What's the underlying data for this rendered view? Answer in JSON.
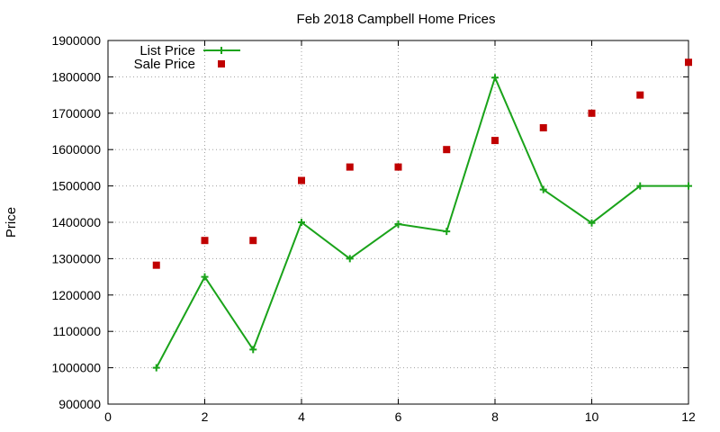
{
  "chart_data": {
    "type": "line",
    "title": "Feb 2018 Campbell Home Prices",
    "xlabel": "",
    "ylabel": "Price",
    "xlim": [
      0,
      12
    ],
    "ylim": [
      900000,
      1900000
    ],
    "x_ticks": [
      0,
      2,
      4,
      6,
      8,
      10,
      12
    ],
    "y_ticks": [
      900000,
      1000000,
      1100000,
      1200000,
      1300000,
      1400000,
      1500000,
      1600000,
      1700000,
      1800000,
      1900000
    ],
    "grid": true,
    "legend_position": "top-left",
    "series": [
      {
        "name": "List Price",
        "style": "line-with-plus-markers",
        "color": "#1aa31a",
        "x": [
          1,
          2,
          3,
          4,
          5,
          6,
          7,
          8,
          9,
          10,
          11,
          12
        ],
        "y": [
          1000000,
          1250000,
          1050000,
          1400000,
          1300000,
          1395000,
          1375000,
          1798000,
          1490000,
          1398000,
          1500000,
          1500000
        ]
      },
      {
        "name": "Sale Price",
        "style": "square-markers",
        "color": "#c00000",
        "x": [
          1,
          2,
          3,
          4,
          5,
          6,
          7,
          8,
          9,
          10,
          11,
          12
        ],
        "y": [
          1282000,
          1350000,
          1350000,
          1515000,
          1552000,
          1552000,
          1600000,
          1625000,
          1660000,
          1700000,
          1750000,
          1840000
        ]
      }
    ]
  }
}
